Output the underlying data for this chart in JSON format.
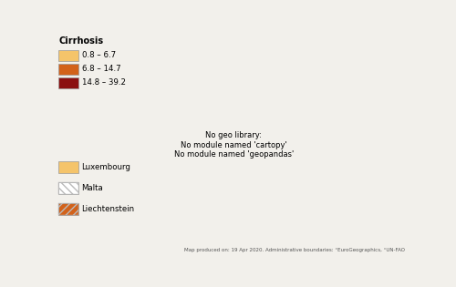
{
  "title": "Cirrhosis",
  "legend_labels": [
    "0.8 – 6.7",
    "6.8 – 14.7",
    "14.8 – 39.2"
  ],
  "legend_colors": [
    "#F5C46A",
    "#D2621A",
    "#8B1010"
  ],
  "footnote": "Map produced on: 19 Apr 2020. Administrative boundaries: °EuroGeographics, °UN-FAO",
  "background_color": "#f2f0eb",
  "ocean_color": "#ffffff",
  "non_eu_color": "#d8d5cc",
  "border_color": "#aaaaaa",
  "border_width": 0.4,
  "country_colors": {
    "Iceland": "#F5C46A",
    "Norway": "#F5C46A",
    "Sweden": "#F5C46A",
    "Finland": "#F5C46A",
    "Denmark": "#F5C46A",
    "Estonia": "#D2621A",
    "Latvia": "#D2621A",
    "Lithuania": "#D2621A",
    "Ireland": "#F5C46A",
    "United Kingdom": "#F5C46A",
    "Netherlands": "#F5C46A",
    "Belgium": "#F5C46A",
    "Luxembourg": "#F5C46A",
    "Germany": "#F5C46A",
    "Poland": "#D2621A",
    "Czech Republic": "#F5C46A",
    "Slovakia": "#D2621A",
    "Austria": "#F5C46A",
    "Switzerland": "#F5C46A",
    "France": "#F5C46A",
    "Spain": "#D2621A",
    "Portugal": "#D2621A",
    "Italy": "#D2621A",
    "Slovenia": "#D2621A",
    "Croatia": "#D2621A",
    "Hungary": "#D2621A",
    "Romania": "#8B1010",
    "Bulgaria": "#D2621A",
    "Greece": "#D2621A",
    "Cyprus": "#F5C46A"
  },
  "extra_legend": [
    {
      "label": "Luxembourg",
      "color": "#F5C46A",
      "hatch": ""
    },
    {
      "label": "Malta",
      "color": "#ffffff",
      "hatch": "\\\\\\\\"
    },
    {
      "label": "Liechtenstein",
      "color": "#D2621A",
      "hatch": "////"
    }
  ]
}
